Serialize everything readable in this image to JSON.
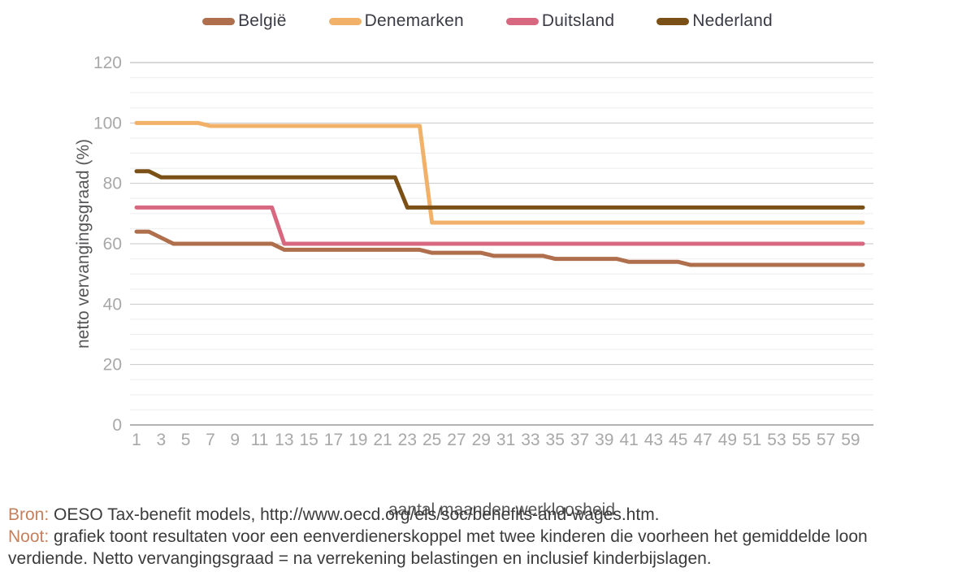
{
  "chart_data": {
    "type": "line",
    "title": "",
    "xlabel": "aantal maanden werkloosheid",
    "ylabel": "netto vervangingsgraad (%)",
    "xlim": [
      1,
      60
    ],
    "ylim": [
      0,
      120
    ],
    "x_ticks": [
      1,
      3,
      5,
      7,
      9,
      11,
      13,
      15,
      17,
      19,
      21,
      23,
      25,
      27,
      29,
      31,
      33,
      35,
      37,
      39,
      41,
      43,
      45,
      47,
      49,
      51,
      53,
      55,
      57,
      59
    ],
    "y_ticks": [
      0,
      20,
      40,
      60,
      80,
      100,
      120
    ],
    "minor_gridline_step": 5,
    "grid": "on",
    "legend_position": "top-center",
    "x": [
      1,
      2,
      3,
      4,
      5,
      6,
      7,
      8,
      9,
      10,
      11,
      12,
      13,
      14,
      15,
      16,
      17,
      18,
      19,
      20,
      21,
      22,
      23,
      24,
      25,
      26,
      27,
      28,
      29,
      30,
      31,
      32,
      33,
      34,
      35,
      36,
      37,
      38,
      39,
      40,
      41,
      42,
      43,
      44,
      45,
      46,
      47,
      48,
      49,
      50,
      51,
      52,
      53,
      54,
      55,
      56,
      57,
      58,
      59,
      60
    ],
    "series": [
      {
        "id": "belgie",
        "name": "België",
        "color": "#b06f4c",
        "values": [
          64,
          64,
          62,
          60,
          60,
          60,
          60,
          60,
          60,
          60,
          60,
          60,
          58,
          58,
          58,
          58,
          58,
          58,
          58,
          58,
          58,
          58,
          58,
          58,
          57,
          57,
          57,
          57,
          57,
          56,
          56,
          56,
          56,
          56,
          55,
          55,
          55,
          55,
          55,
          55,
          54,
          54,
          54,
          54,
          54,
          53,
          53,
          53,
          53,
          53,
          53,
          53,
          53,
          53,
          53,
          53,
          53,
          53,
          53,
          53
        ]
      },
      {
        "id": "denemarken",
        "name": "Denemarken",
        "color": "#f2b169",
        "values": [
          100,
          100,
          100,
          100,
          100,
          100,
          99,
          99,
          99,
          99,
          99,
          99,
          99,
          99,
          99,
          99,
          99,
          99,
          99,
          99,
          99,
          99,
          99,
          99,
          67,
          67,
          67,
          67,
          67,
          67,
          67,
          67,
          67,
          67,
          67,
          67,
          67,
          67,
          67,
          67,
          67,
          67,
          67,
          67,
          67,
          67,
          67,
          67,
          67,
          67,
          67,
          67,
          67,
          67,
          67,
          67,
          67,
          67,
          67,
          67
        ]
      },
      {
        "id": "duitsland",
        "name": "Duitsland",
        "color": "#d8687f",
        "values": [
          72,
          72,
          72,
          72,
          72,
          72,
          72,
          72,
          72,
          72,
          72,
          72,
          60,
          60,
          60,
          60,
          60,
          60,
          60,
          60,
          60,
          60,
          60,
          60,
          60,
          60,
          60,
          60,
          60,
          60,
          60,
          60,
          60,
          60,
          60,
          60,
          60,
          60,
          60,
          60,
          60,
          60,
          60,
          60,
          60,
          60,
          60,
          60,
          60,
          60,
          60,
          60,
          60,
          60,
          60,
          60,
          60,
          60,
          60,
          60
        ]
      },
      {
        "id": "nederland",
        "name": "Nederland",
        "color": "#7a5016",
        "values": [
          84,
          84,
          82,
          82,
          82,
          82,
          82,
          82,
          82,
          82,
          82,
          82,
          82,
          82,
          82,
          82,
          82,
          82,
          82,
          82,
          82,
          82,
          72,
          72,
          72,
          72,
          72,
          72,
          72,
          72,
          72,
          72,
          72,
          72,
          72,
          72,
          72,
          72,
          72,
          72,
          72,
          72,
          72,
          72,
          72,
          72,
          72,
          72,
          72,
          72,
          72,
          72,
          72,
          72,
          72,
          72,
          72,
          72,
          72,
          72
        ]
      }
    ]
  },
  "axes": {
    "y_title": "netto vervangingsgraad (%)",
    "x_title": "aantal maanden werkloosheid"
  },
  "caption": {
    "bron_label": "Bron:",
    "bron_text": "OESO Tax-benefit models, http://www.oecd.org/els/soc/benefits-and-wages.htm.",
    "noot_label": "Noot:",
    "noot_text": "grafiek toont resultaten voor een eenverdienerskoppel met twee kinderen die voorheen het gemiddelde loon verdiende. Netto vervangingsgraad = na verrekening belastingen en inclusief kinderbijslagen."
  }
}
